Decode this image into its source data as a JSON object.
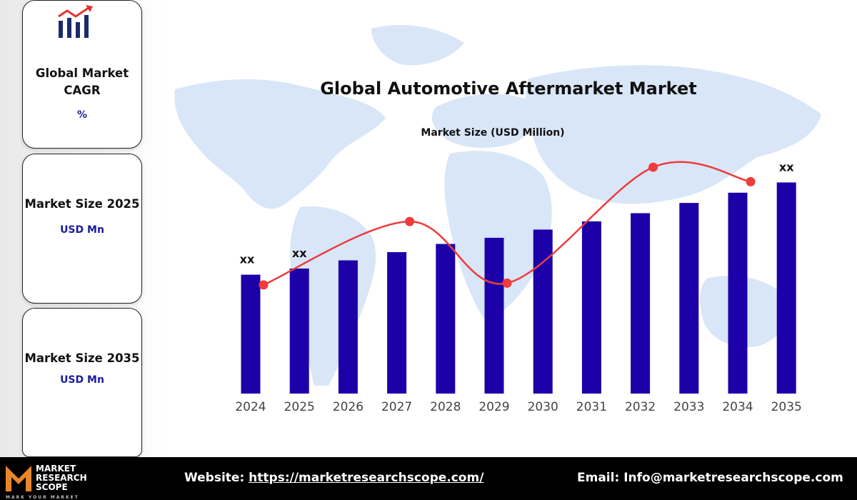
{
  "cards": [
    {
      "title": "Global Market CAGR",
      "title_lines": [
        "Global Market",
        "CAGR"
      ],
      "sub": "%"
    },
    {
      "title": "Market Size 2025",
      "sub": "USD Mn"
    },
    {
      "title": "Market Size 2035",
      "sub": "USD Mn"
    }
  ],
  "footer": {
    "website_label": "Website:",
    "website_url": "https://marketresearchscope.com/",
    "email_label": "Email:",
    "email_value": "Info@marketresearchscope.com",
    "logo_lines": [
      "MARKET",
      "RESEARCH",
      "SCOPE"
    ],
    "logo_tagline": "MARK YOUR MARKET"
  },
  "colors": {
    "bar": "#1c00a8",
    "line": "#ef3b3b",
    "map": "#d8e6f8",
    "text": "#111111",
    "tick": "#444444"
  },
  "chart_data": {
    "type": "bar",
    "title": "Global Automotive Aftermarket Market",
    "subtitle": "Market Size (USD Million)",
    "categories": [
      "2024",
      "2025",
      "2026",
      "2027",
      "2028",
      "2029",
      "2030",
      "2031",
      "2032",
      "2033",
      "2034",
      "2035"
    ],
    "values": [
      58,
      61,
      65,
      69,
      73,
      76,
      80,
      84,
      88,
      93,
      98,
      103
    ],
    "ylim": [
      0,
      115
    ],
    "data_labels": [
      {
        "category": "2024",
        "text": "xx"
      },
      {
        "category": "2025",
        "text": "xx"
      },
      {
        "category": "2035",
        "text": "xx"
      }
    ],
    "trend_line": {
      "type": "line",
      "points": [
        {
          "category": "2024",
          "value": 60
        },
        {
          "category": "2027",
          "value": 95
        },
        {
          "category": "2029",
          "value": 61
        },
        {
          "category": "2032",
          "value": 125
        },
        {
          "category": "2034",
          "value": 117
        }
      ],
      "scale": [
        0,
        170
      ]
    },
    "grid": false,
    "legend": "none"
  }
}
